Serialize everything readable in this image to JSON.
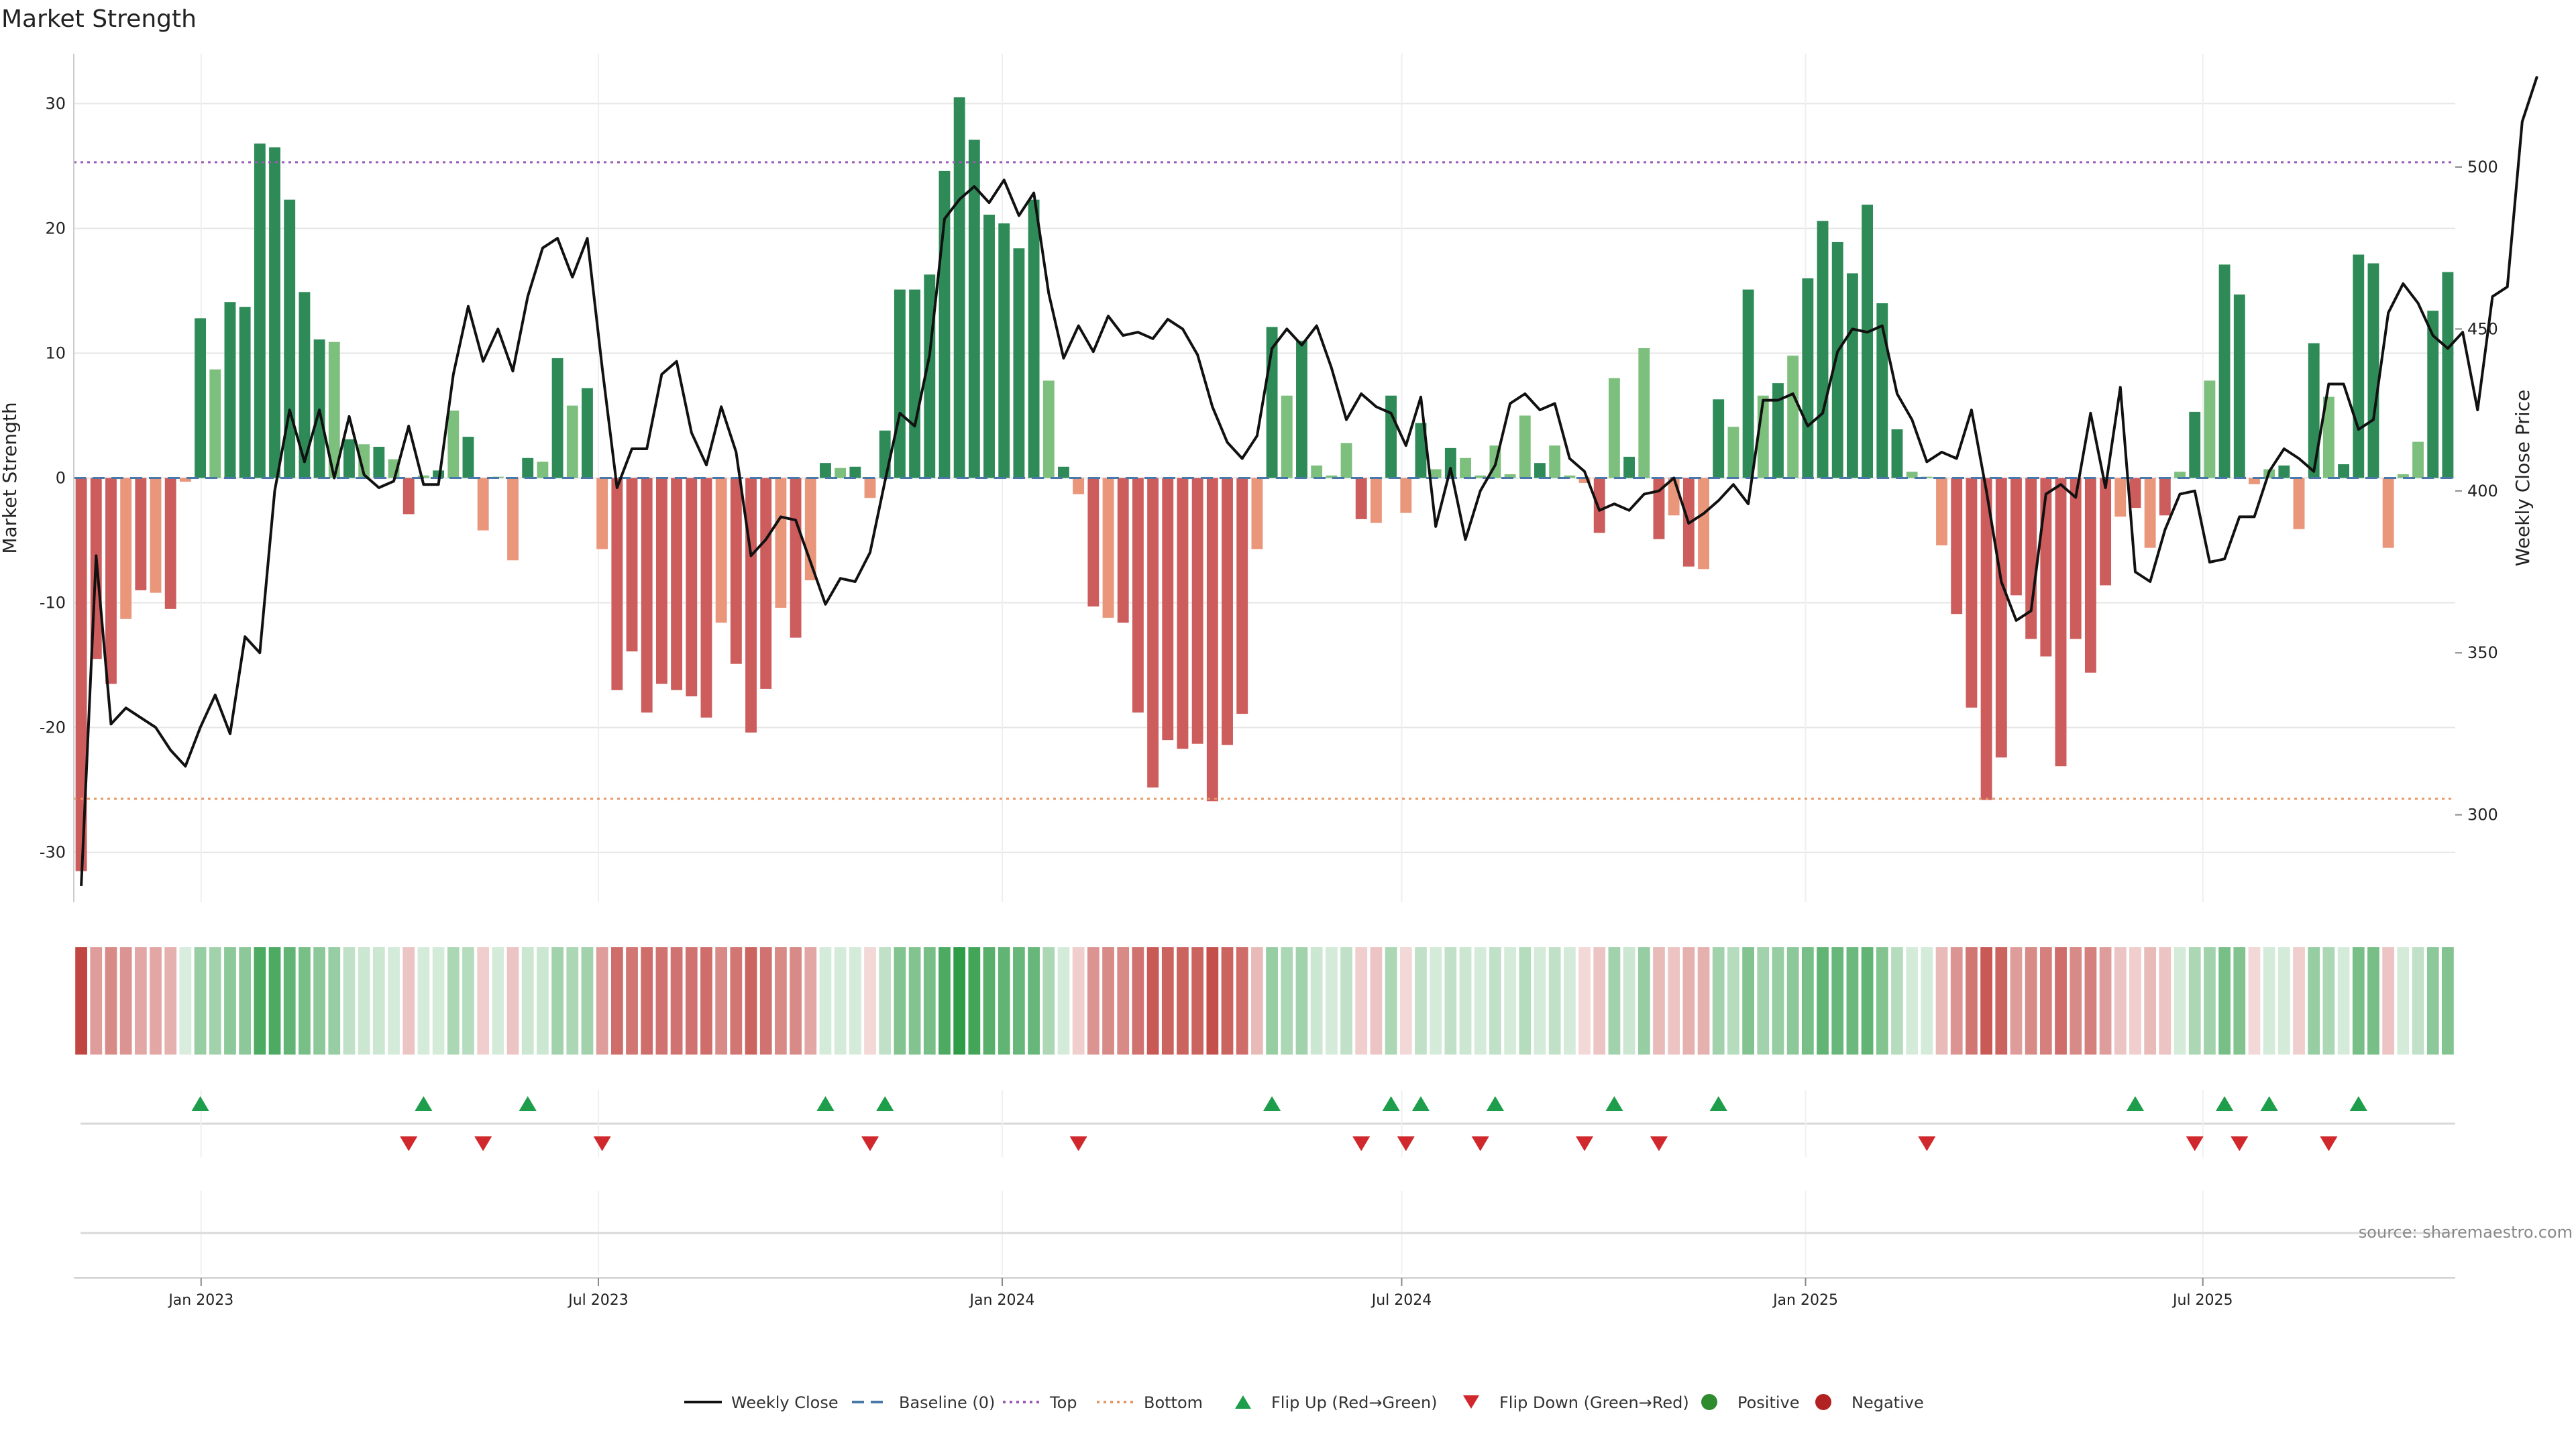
{
  "chart_data": {
    "type": "bar",
    "title": "Market Strength",
    "ylabel": "Market Strength",
    "y2label": "Weekly Close Price",
    "ylim": [
      -34,
      34
    ],
    "y2lim": [
      273,
      535
    ],
    "yticks": [
      -30,
      -20,
      -10,
      0,
      10,
      20,
      30
    ],
    "y2ticks": [
      300,
      350,
      400,
      450,
      500
    ],
    "top_line": 25.3,
    "bottom_line": -25.7,
    "x_start": "2022-11-04",
    "x_end": "2025-10-24",
    "xticks": [
      {
        "label": "Jan 2023",
        "date": "2023-01-01"
      },
      {
        "label": "Jul 2023",
        "date": "2023-07-01"
      },
      {
        "label": "Jan 2024",
        "date": "2024-01-01"
      },
      {
        "label": "Jul 2024",
        "date": "2024-07-01"
      },
      {
        "label": "Jan 2025",
        "date": "2025-01-01"
      },
      {
        "label": "Jul 2025",
        "date": "2025-07-01"
      }
    ],
    "strength": [
      -31.5,
      -14.5,
      -16.5,
      -11.3,
      -9,
      -9.2,
      -10.5,
      -0.3,
      12.8,
      8.7,
      14.1,
      13.7,
      26.8,
      26.5,
      22.3,
      14.9,
      11.1,
      10.9,
      3.1,
      2.7,
      2.5,
      1.5,
      -2.9,
      0.2,
      0.6,
      5.4,
      3.3,
      -4.2,
      0.1,
      -6.6,
      1.6,
      1.3,
      9.6,
      5.8,
      7.2,
      -5.7,
      -17,
      -13.9,
      -18.8,
      -16.5,
      -17,
      -17.5,
      -19.2,
      -11.6,
      -14.9,
      -20.4,
      -16.9,
      -10.4,
      -12.8,
      -8.2,
      1.2,
      0.8,
      0.9,
      -1.6,
      3.8,
      15.1,
      15.1,
      16.3,
      24.6,
      30.5,
      27.1,
      21.1,
      20.4,
      18.4,
      22.3,
      7.8,
      0.9,
      -1.3,
      -10.3,
      -11.2,
      -11.6,
      -18.8,
      -24.8,
      -21,
      -21.7,
      -21.3,
      -25.9,
      -21.4,
      -18.9,
      -5.7,
      12.1,
      6.6,
      11,
      1,
      0.2,
      2.8,
      -3.3,
      -3.6,
      6.6,
      -2.8,
      4.4,
      0.7,
      2.4,
      1.6,
      0.2,
      2.6,
      0.3,
      5,
      1.2,
      2.6,
      0.2,
      -0.4,
      -4.4,
      8,
      1.7,
      10.4,
      -4.9,
      -3,
      -7.1,
      -7.3,
      6.3,
      4.1,
      15.1,
      6.6,
      7.6,
      9.8,
      16,
      20.6,
      18.9,
      16.4,
      21.9,
      14,
      3.9,
      0.5,
      0.1,
      -5.4,
      -10.9,
      -18.4,
      -25.8,
      -22.4,
      -9.4,
      -12.9,
      -14.3,
      -23.1,
      -12.9,
      -15.6,
      -8.6,
      -3.1,
      -2.4,
      -5.6,
      -3,
      0.5,
      5.3,
      7.8,
      17.1,
      14.7,
      -0.5,
      0.7,
      1,
      -4.1,
      10.8,
      6.5,
      1.1,
      17.9,
      17.2,
      -5.6,
      0.3,
      2.9,
      13.4,
      16.5
    ],
    "close": [
      278,
      380,
      328,
      333,
      330,
      327,
      320,
      315,
      327,
      337,
      325,
      355,
      350,
      400,
      425,
      409,
      425,
      404,
      423,
      405,
      401,
      403,
      420,
      402,
      402,
      436,
      457,
      440,
      450,
      437,
      460,
      475,
      478,
      466,
      478,
      438,
      401,
      413,
      413,
      436,
      440,
      418,
      408,
      426,
      412,
      380,
      385,
      392,
      391,
      378,
      365,
      373,
      372,
      381,
      403,
      424,
      420,
      442,
      484,
      490,
      494,
      489,
      496,
      485,
      492,
      461,
      441,
      451,
      443,
      454,
      448,
      449,
      447,
      453,
      450,
      442,
      426,
      415,
      410,
      417,
      444,
      450,
      445,
      451,
      438,
      422,
      430,
      426,
      424,
      414,
      429,
      389,
      407,
      385,
      400,
      408,
      427,
      430,
      425,
      427,
      410,
      406,
      394,
      396,
      394,
      399,
      400,
      404,
      390,
      393,
      397,
      402,
      396,
      428,
      428,
      430,
      420,
      424,
      443,
      450,
      449,
      451,
      430,
      422,
      409,
      412,
      410,
      425,
      400,
      372,
      360,
      363,
      399,
      402,
      398,
      424,
      401,
      432,
      375,
      372,
      388,
      399,
      400,
      378,
      379,
      392,
      392,
      406,
      413,
      410,
      406,
      433,
      433,
      419,
      422,
      455,
      464,
      458,
      448,
      444,
      449,
      425,
      460,
      463,
      514,
      528
    ],
    "heat": [
      -0.95,
      -0.5,
      -0.6,
      -0.55,
      -0.45,
      -0.45,
      -0.4,
      0,
      0.5,
      0.45,
      0.55,
      0.55,
      0.85,
      0.85,
      0.75,
      0.65,
      0.55,
      0.5,
      0.3,
      0.25,
      0.25,
      0.2,
      -0.3,
      0.2,
      0.2,
      0.4,
      0.35,
      -0.25,
      0.2,
      -0.3,
      0.25,
      0.25,
      0.45,
      0.4,
      0.45,
      -0.5,
      -0.75,
      -0.7,
      -0.75,
      -0.72,
      -0.72,
      -0.72,
      -0.75,
      -0.6,
      -0.7,
      -0.8,
      -0.72,
      -0.6,
      -0.6,
      -0.45,
      0.2,
      0.2,
      0.2,
      -0.2,
      0.3,
      0.6,
      0.6,
      0.65,
      0.85,
      1,
      0.9,
      0.8,
      0.75,
      0.72,
      0.72,
      0.4,
      0.2,
      -0.25,
      -0.55,
      -0.6,
      -0.6,
      -0.72,
      -0.85,
      -0.8,
      -0.8,
      -0.8,
      -0.9,
      -0.8,
      -0.75,
      -0.35,
      0.5,
      0.4,
      0.45,
      0.25,
      0.2,
      0.3,
      -0.25,
      -0.3,
      0.4,
      -0.2,
      0.3,
      0.2,
      0.3,
      0.25,
      0.2,
      0.3,
      0.2,
      0.35,
      0.2,
      0.3,
      0.2,
      -0.2,
      -0.3,
      0.45,
      0.25,
      0.5,
      -0.35,
      -0.3,
      -0.4,
      -0.4,
      0.45,
      0.35,
      0.6,
      0.45,
      0.5,
      0.55,
      0.65,
      0.75,
      0.72,
      0.7,
      0.75,
      0.6,
      0.35,
      0.2,
      0.2,
      -0.35,
      -0.55,
      -0.7,
      -0.85,
      -0.8,
      -0.5,
      -0.6,
      -0.65,
      -0.75,
      -0.6,
      -0.65,
      -0.5,
      -0.3,
      -0.25,
      -0.35,
      -0.3,
      0.2,
      0.4,
      0.45,
      0.65,
      0.6,
      -0.2,
      0.2,
      0.2,
      -0.25,
      0.5,
      0.4,
      0.2,
      0.65,
      0.65,
      -0.3,
      0.2,
      0.3,
      0.55,
      0.6
    ],
    "flip_up": [
      8,
      23,
      30,
      50,
      54,
      80,
      88,
      90,
      95,
      103,
      110,
      138,
      144,
      147,
      153
    ],
    "flip_down": [
      22,
      27,
      35,
      53,
      67,
      86,
      89,
      94,
      101,
      106,
      124,
      142,
      145,
      151
    ],
    "source": "source: sharemaestro.com",
    "legend": [
      {
        "label": "Weekly Close",
        "kind": "line",
        "color": "#111111"
      },
      {
        "label": "Baseline (0)",
        "kind": "dash",
        "color": "#4a78a8"
      },
      {
        "label": "Top",
        "kind": "dot",
        "color": "#9b59b6"
      },
      {
        "label": "Bottom",
        "kind": "dot",
        "color": "#e59866"
      },
      {
        "label": "Flip Up (Red→Green)",
        "kind": "tri-up",
        "color": "#1e9e4a"
      },
      {
        "label": "Flip Down (Green→Red)",
        "kind": "tri-down",
        "color": "#d0282c"
      },
      {
        "label": "Positive",
        "kind": "circle",
        "color": "#2e8b2e"
      },
      {
        "label": "Negative",
        "kind": "circle",
        "color": "#b22222"
      }
    ],
    "colors": {
      "strong_pos": "#2e8b57",
      "weak_pos": "#7dbf7d",
      "strong_neg": "#cd5c5c",
      "weak_neg": "#e9967a",
      "price": "#111111",
      "grid": "#e6e6e6"
    }
  }
}
